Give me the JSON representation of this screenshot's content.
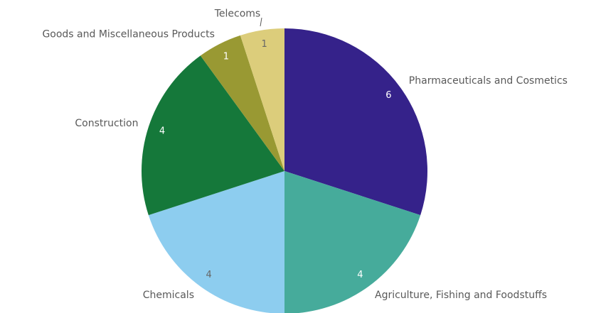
{
  "chart_data": {
    "type": "pie",
    "categories": [
      "Pharmaceuticals and Cosmetics",
      "Agriculture, Fishing and Foodstuffs",
      "Chemicals",
      "Construction",
      "Goods and Miscellaneous Products",
      "Telecoms"
    ],
    "values": [
      6,
      4,
      4,
      4,
      1,
      1
    ],
    "colors": [
      "#35228a",
      "#46ab9b",
      "#8dcdef",
      "#15783a",
      "#999933",
      "#dccd7b"
    ]
  }
}
